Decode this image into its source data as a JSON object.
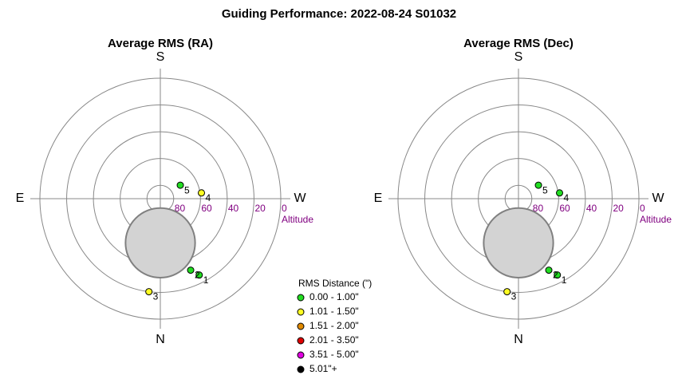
{
  "title": "Guiding Performance: 2022-08-24 S01032",
  "legend": {
    "title": "RMS Distance (\")",
    "items": [
      {
        "name": "0.00 - 1.00\"",
        "color": "#22dd22"
      },
      {
        "name": "1.01 - 1.50\"",
        "color": "#ffff22"
      },
      {
        "name": "1.51 - 2.00\"",
        "color": "#e08a00"
      },
      {
        "name": "2.01 - 3.50\"",
        "color": "#e00000"
      },
      {
        "name": "3.51 - 5.00\"",
        "color": "#e000e0"
      },
      {
        "name": "5.01\"+",
        "color": "#000000"
      }
    ]
  },
  "chart_data": [
    {
      "type": "polar",
      "title": "Average RMS (RA)",
      "directions": {
        "top": "S",
        "right": "W",
        "bottom": "N",
        "left": "E"
      },
      "rlabel": "Altitude",
      "rlim": [
        90,
        0
      ],
      "rticks": [
        80,
        60,
        40,
        20,
        0
      ],
      "disc": {
        "azimuth": 0,
        "altitude": 57,
        "radius": 26
      },
      "points": [
        {
          "label": "1",
          "azimuth": 333,
          "altitude": 26,
          "color": "#22dd22"
        },
        {
          "label": "2",
          "azimuth": 337,
          "altitude": 32,
          "color": "#22dd22"
        },
        {
          "label": "3",
          "azimuth": 7,
          "altitude": 20,
          "color": "#ffff22"
        },
        {
          "label": "4",
          "azimuth": 262,
          "altitude": 59,
          "color": "#ffff22"
        },
        {
          "label": "5",
          "azimuth": 236,
          "altitude": 72,
          "color": "#22dd22"
        }
      ]
    },
    {
      "type": "polar",
      "title": "Average RMS (Dec)",
      "directions": {
        "top": "S",
        "right": "W",
        "bottom": "N",
        "left": "E"
      },
      "rlabel": "Altitude",
      "rlim": [
        90,
        0
      ],
      "rticks": [
        80,
        60,
        40,
        20,
        0
      ],
      "disc": {
        "azimuth": 0,
        "altitude": 57,
        "radius": 26
      },
      "points": [
        {
          "label": "1",
          "azimuth": 333,
          "altitude": 26,
          "color": "#22dd22"
        },
        {
          "label": "2",
          "azimuth": 337,
          "altitude": 32,
          "color": "#22dd22"
        },
        {
          "label": "3",
          "azimuth": 7,
          "altitude": 20,
          "color": "#ffff22"
        },
        {
          "label": "4",
          "azimuth": 262,
          "altitude": 59,
          "color": "#22dd22"
        },
        {
          "label": "5",
          "azimuth": 236,
          "altitude": 72,
          "color": "#22dd22"
        }
      ]
    }
  ]
}
